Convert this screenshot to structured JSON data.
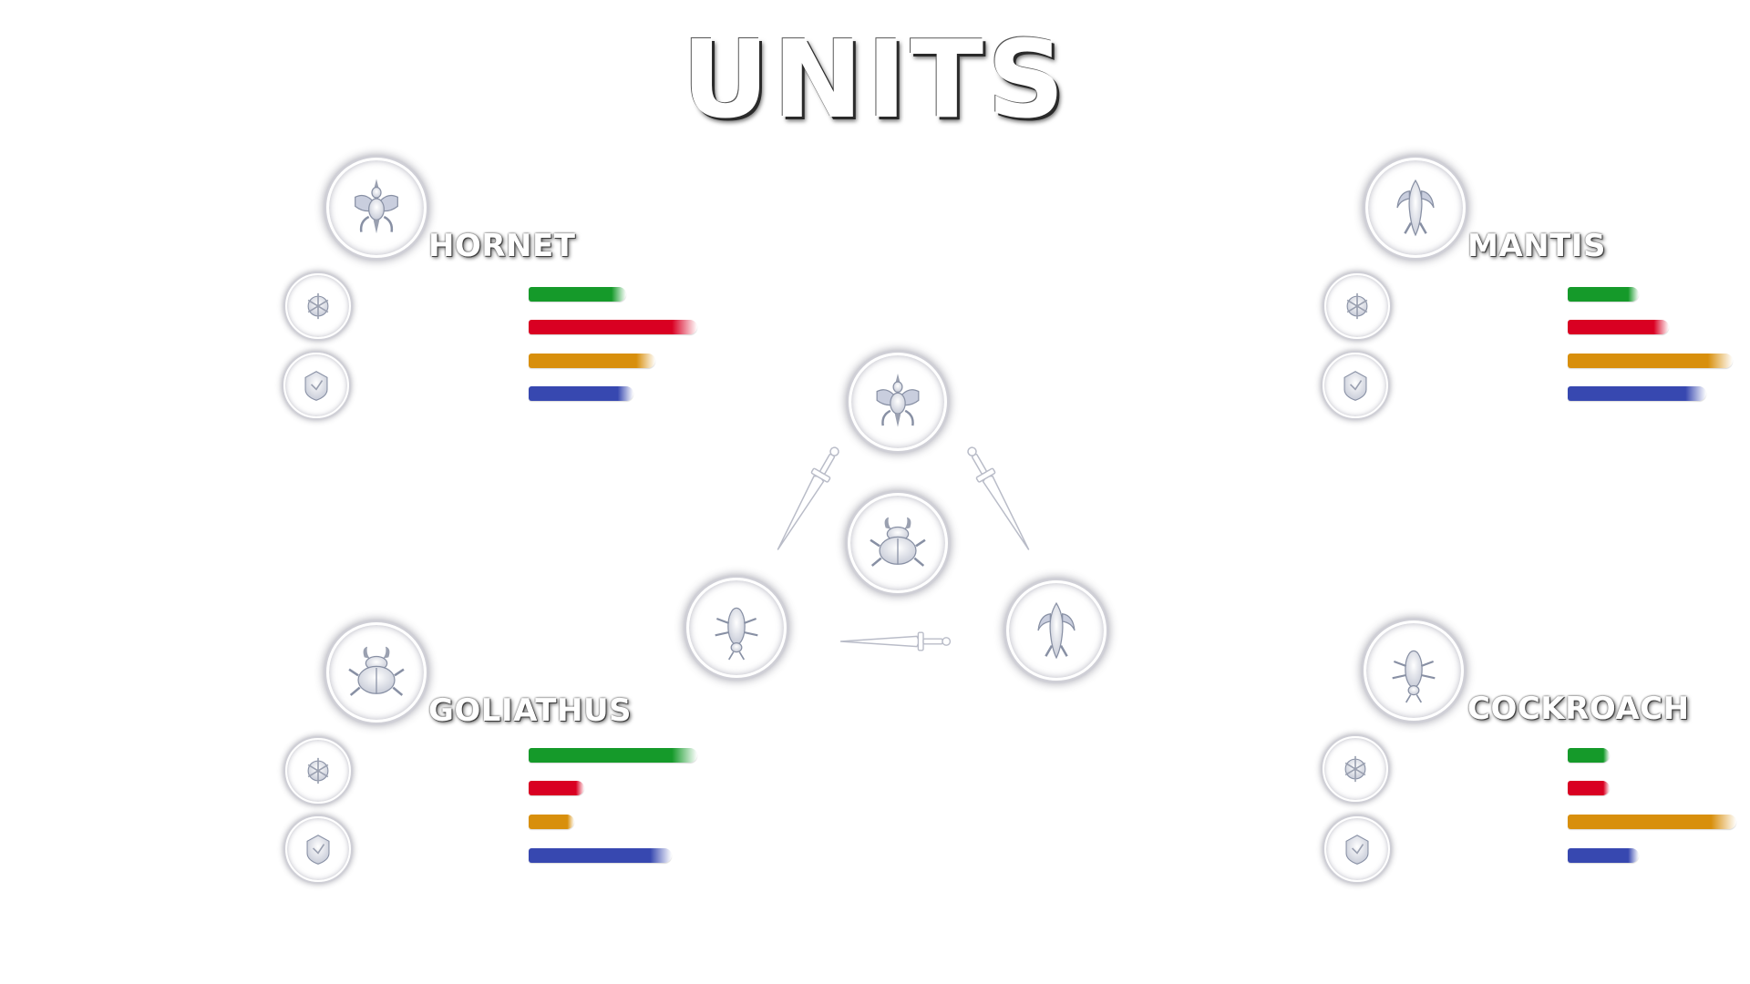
{
  "title": "UNITS",
  "stat_colors": [
    "#159a2a",
    "#d90022",
    "#d88f0c",
    "#3748b0"
  ],
  "units": [
    {
      "name": "HORNET",
      "icon": "hornet-icon",
      "abilities": [
        "hornet-ability-1-icon",
        "hornet-ability-2-icon"
      ],
      "stats": [
        0.58,
        1.0,
        0.75,
        0.62
      ]
    },
    {
      "name": "MANTIS",
      "icon": "mantis-icon",
      "abilities": [
        "mantis-ability-1-icon",
        "mantis-ability-2-icon"
      ],
      "stats": [
        0.42,
        0.6,
        0.98,
        0.82
      ]
    },
    {
      "name": "GOLIATHUS",
      "icon": "goliathus-icon",
      "abilities": [
        "goliathus-ability-1-icon",
        "goliathus-ability-2-icon"
      ],
      "stats": [
        1.0,
        0.33,
        0.27,
        0.85
      ]
    },
    {
      "name": "COCKROACH",
      "icon": "cockroach-icon",
      "abilities": [
        "cockroach-ability-1-icon",
        "cockroach-ability-2-icon"
      ],
      "stats": [
        0.25,
        0.25,
        1.0,
        0.42
      ]
    }
  ],
  "counter_diagram": {
    "top": "hornet-icon",
    "center": "goliathus-icon",
    "left": "cockroach-icon",
    "right": "mantis-icon",
    "connectors": [
      "sword-icon",
      "sword-icon",
      "sword-icon"
    ]
  }
}
